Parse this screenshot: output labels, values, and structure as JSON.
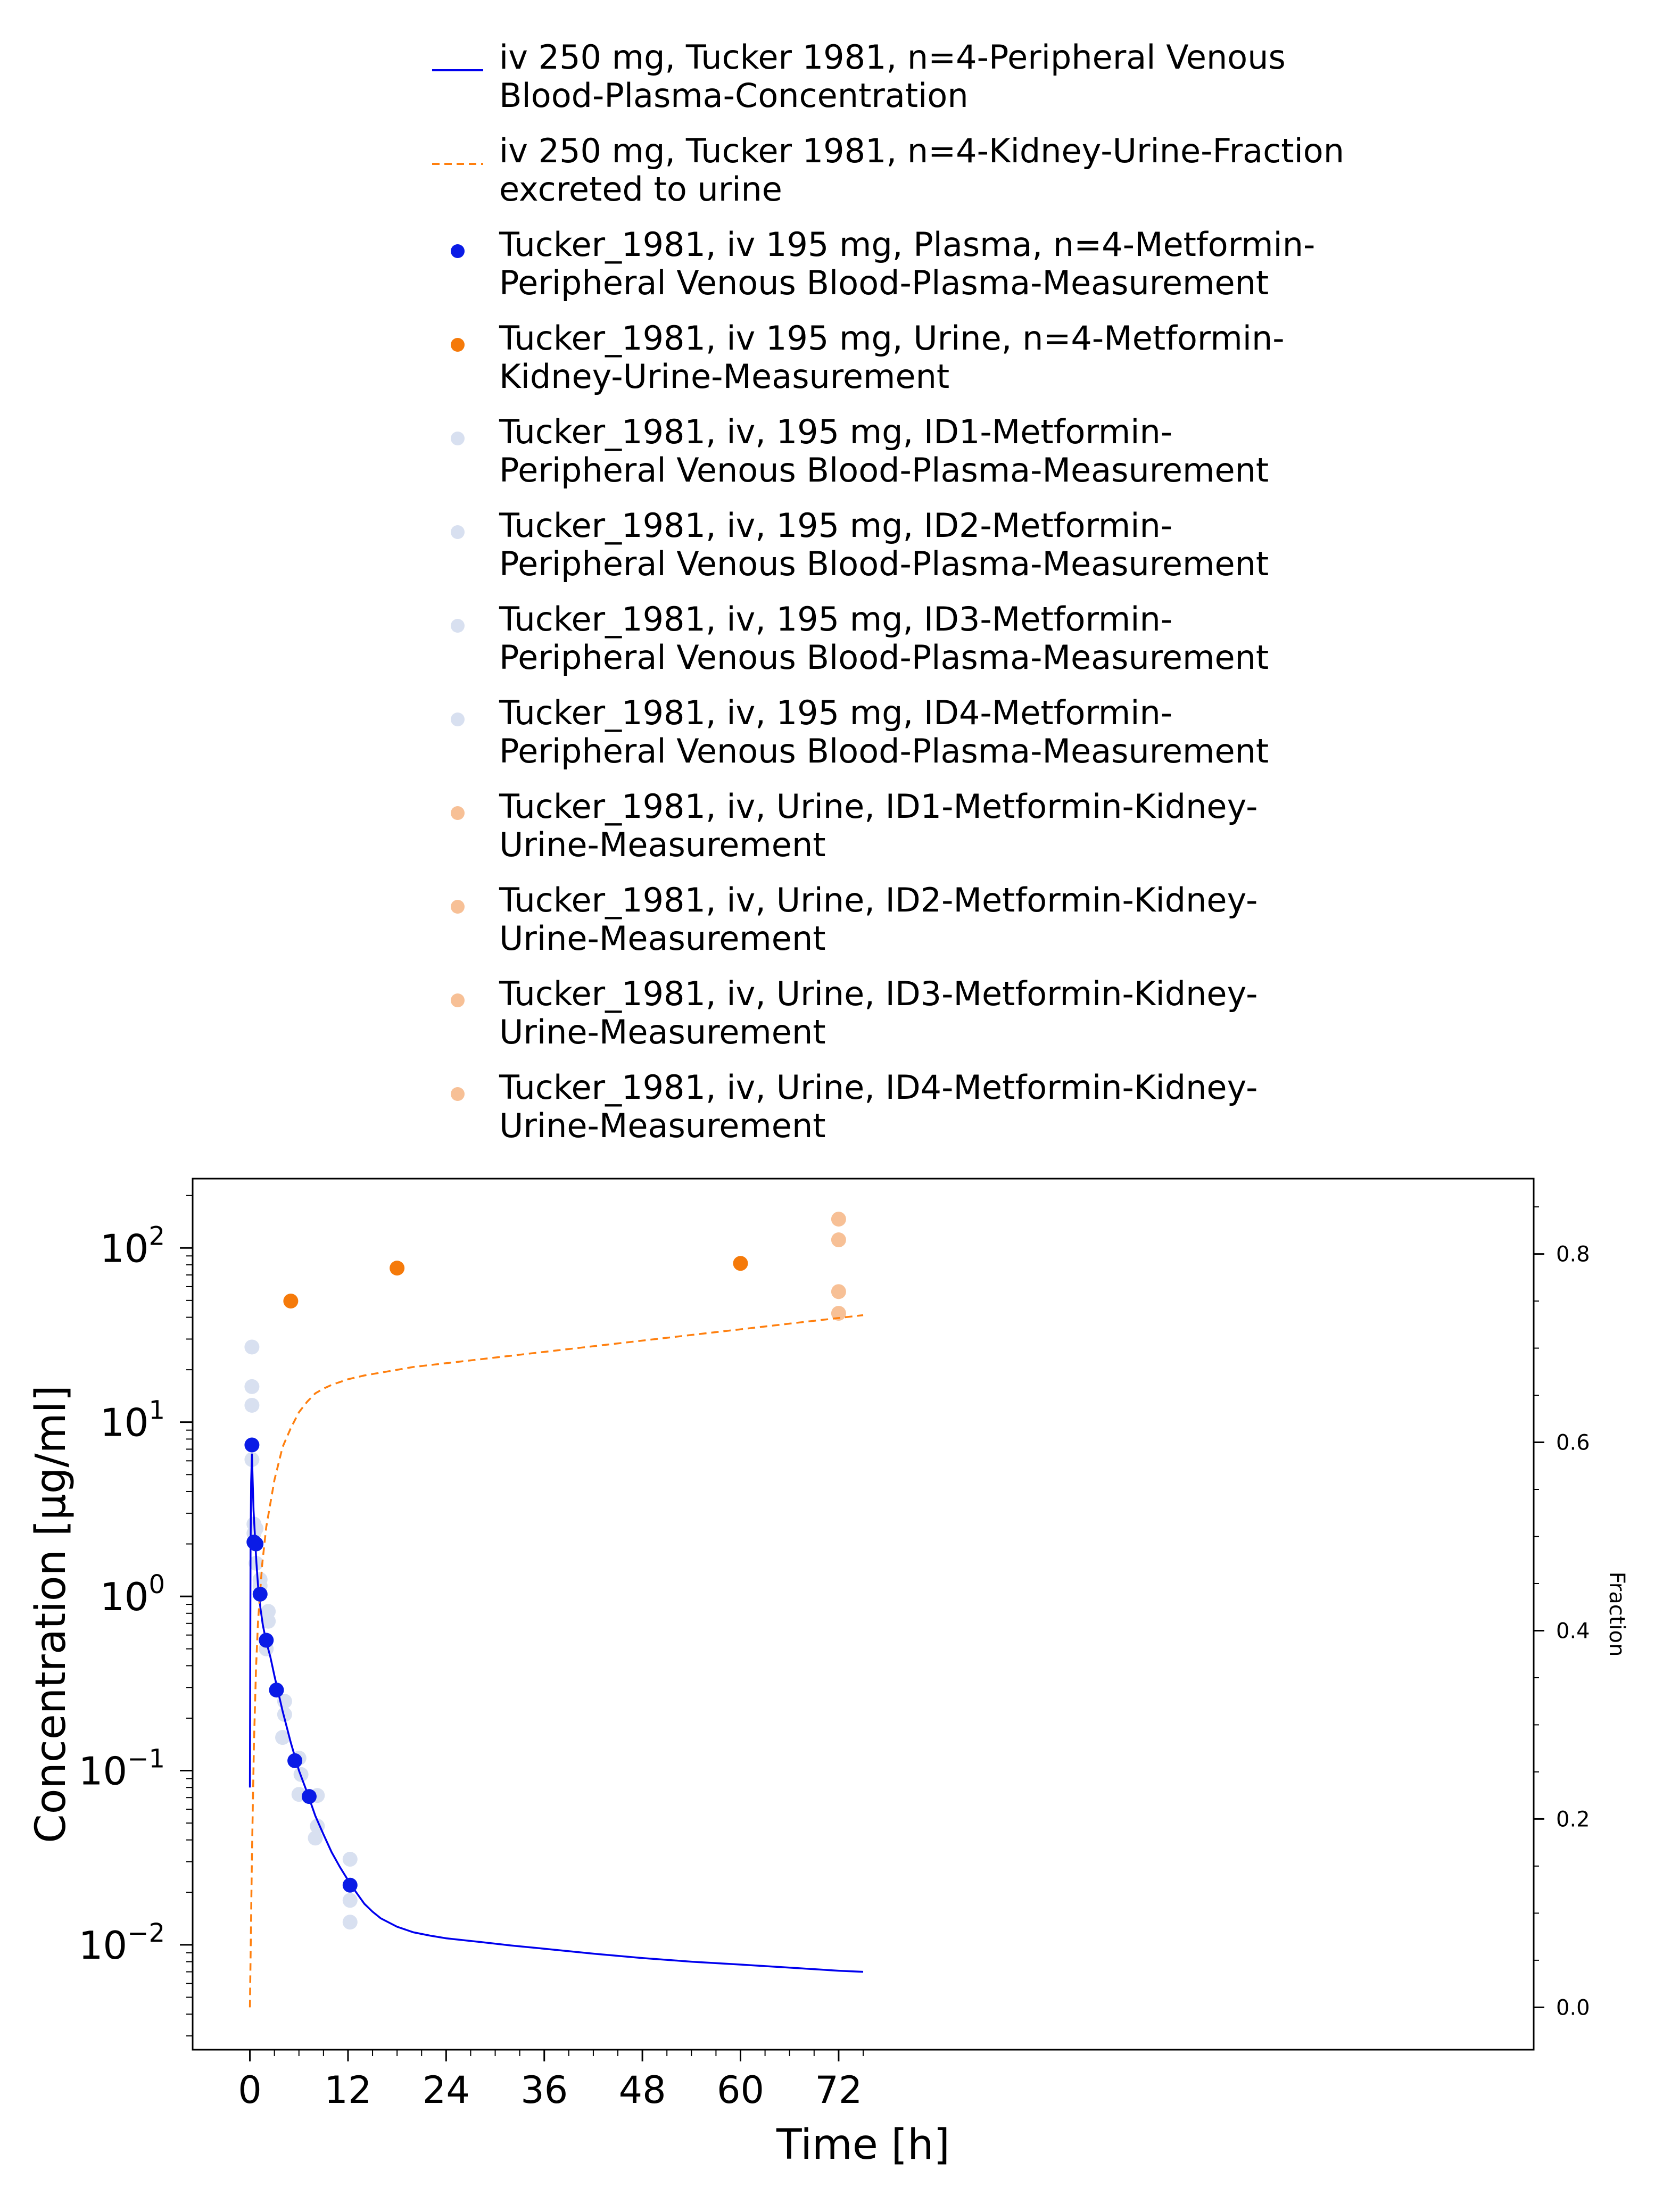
{
  "chart_data": {
    "type": "scatter",
    "title": "",
    "xlabel": "Time [h]",
    "ylabel": "Concentration [µg/ml]",
    "y2label": "Fraction",
    "xlim": [
      -7,
      157
    ],
    "ylim_log": [
      0.0025,
      250
    ],
    "y2lim": [
      -0.045,
      0.88
    ],
    "x_ticks": [
      "0",
      "12",
      "24",
      "36",
      "48",
      "60",
      "72"
    ],
    "x_tick_values": [
      0,
      12,
      24,
      36,
      48,
      60,
      72
    ],
    "y_ticks": [
      {
        "base": "10",
        "exp": "2",
        "value": 100
      },
      {
        "base": "10",
        "exp": "1",
        "value": 10
      },
      {
        "base": "10",
        "exp": "0",
        "value": 1
      },
      {
        "base": "10",
        "exp": "−1",
        "value": 0.1
      },
      {
        "base": "10",
        "exp": "−2",
        "value": 0.01
      }
    ],
    "y2_ticks": [
      "0.0",
      "0.2",
      "0.4",
      "0.6",
      "0.8"
    ],
    "y2_tick_values": [
      0.0,
      0.2,
      0.4,
      0.6,
      0.8
    ],
    "legend_position": "top",
    "legend": [
      {
        "label": "iv 250 mg, Tucker 1981, n=4-Peripheral Venous Blood-Plasma-Concentration",
        "lines": [
          "iv 250 mg, Tucker 1981, n=4-Peripheral Venous",
          "Blood-Plasma-Concentration"
        ],
        "marker": "solid-line",
        "color": "#0000ee"
      },
      {
        "label": "iv 250 mg, Tucker 1981, n=4-Kidney-Urine-Fraction excreted to urine",
        "lines": [
          "iv 250 mg, Tucker 1981, n=4-Kidney-Urine-Fraction",
          "excreted to urine"
        ],
        "marker": "dashed-line",
        "color": "#ff7f0e"
      },
      {
        "label": "Tucker_1981, iv 195 mg, Plasma, n=4-Metformin-Peripheral Venous Blood-Plasma-Measurement",
        "lines": [
          "Tucker_1981, iv 195 mg, Plasma, n=4-Metformin-",
          "Peripheral Venous Blood-Plasma-Measurement"
        ],
        "marker": "dot",
        "color": "#0a1be6"
      },
      {
        "label": "Tucker_1981, iv 195 mg, Urine, n=4-Metformin-Kidney-Urine-Measurement",
        "lines": [
          "Tucker_1981, iv 195 mg, Urine, n=4-Metformin-",
          "Kidney-Urine-Measurement"
        ],
        "marker": "dot",
        "color": "#f57a0a"
      },
      {
        "label": "Tucker_1981, iv, 195 mg, ID1-Metformin-Peripheral Venous Blood-Plasma-Measurement",
        "lines": [
          "Tucker_1981, iv, 195 mg, ID1-Metformin-",
          "Peripheral Venous Blood-Plasma-Measurement"
        ],
        "marker": "dot",
        "color": "#d8e0f0"
      },
      {
        "label": "Tucker_1981, iv, 195 mg, ID2-Metformin-Peripheral Venous Blood-Plasma-Measurement",
        "lines": [
          "Tucker_1981, iv, 195 mg, ID2-Metformin-",
          "Peripheral Venous Blood-Plasma-Measurement"
        ],
        "marker": "dot",
        "color": "#d8e0f0"
      },
      {
        "label": "Tucker_1981, iv, 195 mg, ID3-Metformin-Peripheral Venous Blood-Plasma-Measurement",
        "lines": [
          "Tucker_1981, iv, 195 mg, ID3-Metformin-",
          "Peripheral Venous Blood-Plasma-Measurement"
        ],
        "marker": "dot",
        "color": "#d8e0f0"
      },
      {
        "label": "Tucker_1981, iv, 195 mg, ID4-Metformin-Peripheral Venous Blood-Plasma-Measurement",
        "lines": [
          "Tucker_1981, iv, 195 mg, ID4-Metformin-",
          "Peripheral Venous Blood-Plasma-Measurement"
        ],
        "marker": "dot",
        "color": "#d8e0f0"
      },
      {
        "label": "Tucker_1981, iv, Urine, ID1-Metformin-Kidney-Urine-Measurement",
        "lines": [
          "Tucker_1981, iv, Urine, ID1-Metformin-Kidney-",
          "Urine-Measurement"
        ],
        "marker": "dot",
        "color": "#f7c096"
      },
      {
        "label": "Tucker_1981, iv, Urine, ID2-Metformin-Kidney-Urine-Measurement",
        "lines": [
          "Tucker_1981, iv, Urine, ID2-Metformin-Kidney-",
          "Urine-Measurement"
        ],
        "marker": "dot",
        "color": "#f7c096"
      },
      {
        "label": "Tucker_1981, iv, Urine, ID3-Metformin-Kidney-Urine-Measurement",
        "lines": [
          "Tucker_1981, iv, Urine, ID3-Metformin-Kidney-",
          "Urine-Measurement"
        ],
        "marker": "dot",
        "color": "#f7c096"
      },
      {
        "label": "Tucker_1981, iv, Urine, ID4-Metformin-Kidney-Urine-Measurement",
        "lines": [
          "Tucker_1981, iv, Urine, ID4-Metformin-Kidney-",
          "Urine-Measurement"
        ],
        "marker": "dot",
        "color": "#f7c096"
      }
    ],
    "series": [
      {
        "name": "iv 250 mg, Tucker 1981, n=4-Peripheral Venous Blood-Plasma-Concentration",
        "kind": "line",
        "axis": "left",
        "color": "#0000ee",
        "dash": "solid",
        "x": [
          0,
          0.08,
          0.15,
          0.25,
          0.35,
          0.45,
          0.6,
          0.8,
          1.0,
          1.3,
          1.6,
          2.0,
          2.5,
          3.0,
          4.0,
          5.0,
          6.0,
          7.0,
          8.0,
          9.0,
          10.0,
          11.0,
          12.0,
          13.0,
          14.0,
          15.0,
          16.0,
          18.0,
          20.0,
          22.0,
          24.0,
          28.0,
          32.0,
          36.0,
          42.0,
          48.0,
          54.0,
          60.0,
          66.0,
          72.0,
          75.0
        ],
        "y": [
          0.08,
          1.8,
          4.5,
          6.6,
          4.5,
          3.1,
          2.3,
          1.55,
          1.15,
          0.85,
          0.68,
          0.55,
          0.45,
          0.35,
          0.22,
          0.145,
          0.1,
          0.075,
          0.055,
          0.043,
          0.034,
          0.028,
          0.0235,
          0.02,
          0.0172,
          0.0155,
          0.0142,
          0.0127,
          0.0118,
          0.0113,
          0.0109,
          0.0104,
          0.0099,
          0.0095,
          0.0089,
          0.0084,
          0.008,
          0.0077,
          0.0074,
          0.0071,
          0.007
        ]
      },
      {
        "name": "iv 250 mg, Tucker 1981, n=4-Kidney-Urine-Fraction excreted to urine",
        "kind": "line",
        "axis": "right",
        "color": "#ff7f0e",
        "dash": "dashed",
        "x": [
          0,
          0.25,
          0.5,
          0.75,
          1.0,
          1.5,
          2.0,
          3.0,
          4.0,
          5.0,
          6.0,
          7.0,
          8.0,
          9.0,
          10.0,
          11.0,
          12.0,
          14.0,
          16.0,
          18.0,
          20.0,
          24.0,
          30.0,
          36.0,
          42.0,
          48.0,
          54.0,
          60.0,
          66.0,
          72.0,
          75.0
        ],
        "y": [
          0.0,
          0.16,
          0.28,
          0.36,
          0.41,
          0.47,
          0.51,
          0.56,
          0.595,
          0.615,
          0.632,
          0.643,
          0.652,
          0.657,
          0.661,
          0.664,
          0.667,
          0.671,
          0.674,
          0.677,
          0.68,
          0.684,
          0.69,
          0.696,
          0.702,
          0.708,
          0.714,
          0.72,
          0.726,
          0.732,
          0.735
        ]
      },
      {
        "name": "Tucker_1981, iv 195 mg, Plasma, n=4-Metformin-Peripheral Venous Blood-Plasma-Measurement",
        "kind": "scatter",
        "axis": "left",
        "color": "#0a1be6",
        "x": [
          0.25,
          0.5,
          0.75,
          1.25,
          2.0,
          3.25,
          5.5,
          7.25,
          12.25
        ],
        "y": [
          7.4,
          2.05,
          2.0,
          1.03,
          0.56,
          0.29,
          0.114,
          0.071,
          0.022
        ]
      },
      {
        "name": "Tucker_1981, iv 195 mg, Urine, n=4-Metformin-Kidney-Urine-Measurement",
        "kind": "scatter",
        "axis": "right",
        "color": "#f57a0a",
        "x": [
          5.0,
          18.0,
          60.0
        ],
        "y": [
          0.75,
          0.785,
          0.79
        ]
      },
      {
        "name": "Tucker_1981, iv, 195 mg, ID1-4-Metformin-Peripheral Venous Blood-Plasma-Measurement",
        "kind": "scatter",
        "axis": "left",
        "color": "#d8e0f0",
        "x": [
          0.25,
          0.25,
          0.25,
          0.25,
          0.5,
          0.5,
          0.75,
          0.75,
          1.25,
          1.25,
          2.25,
          2.25,
          2.0,
          4.25,
          4.25,
          4.0,
          6.0,
          6.25,
          6.0,
          8.25,
          8.25,
          8.0,
          12.25,
          12.25,
          12.25
        ],
        "y": [
          27,
          16,
          12.5,
          6.1,
          2.6,
          2.3,
          2.45,
          1.55,
          1.25,
          1.15,
          0.82,
          0.72,
          0.5,
          0.25,
          0.21,
          0.155,
          0.118,
          0.095,
          0.073,
          0.072,
          0.048,
          0.041,
          0.031,
          0.018,
          0.0135
        ]
      },
      {
        "name": "Tucker_1981, iv, Urine, ID1-4-Metformin-Kidney-Urine-Measurement",
        "kind": "scatter",
        "axis": "right",
        "color": "#f7c096",
        "x": [
          72.0,
          72.0,
          72.0,
          72.0
        ],
        "y": [
          0.837,
          0.815,
          0.76,
          0.737
        ]
      }
    ]
  }
}
